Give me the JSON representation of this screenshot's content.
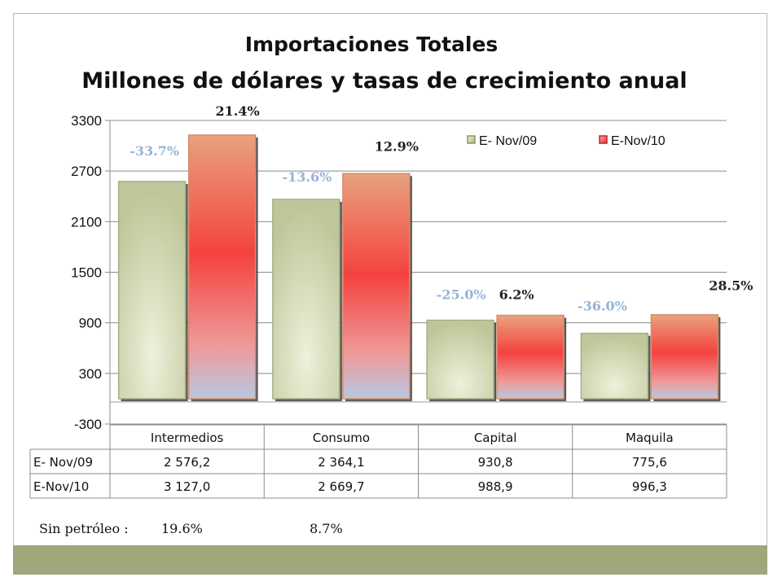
{
  "title": "Importaciones Totales",
  "subtitle": "Millones de dólares y tasas de crecimiento anual",
  "chart_data": {
    "type": "bar",
    "categories": [
      "Intermedios",
      "Consumo",
      "Capital",
      "Maquila"
    ],
    "series": [
      {
        "name": "E- Nov/09",
        "values": [
          2576.2,
          2364.1,
          930.8,
          775.6
        ],
        "table_values": [
          "2 576,2",
          "2 364,1",
          "930,8",
          "775,6"
        ],
        "growth": [
          "-33.7%",
          "-13.6%",
          "-25.0%",
          "-36.0%"
        ],
        "color": "#c9cfa6"
      },
      {
        "name": "E-Nov/10",
        "values": [
          3127.0,
          2669.7,
          988.9,
          996.3
        ],
        "table_values": [
          "3 127,0",
          "2 669,7",
          "988,9",
          "996,3"
        ],
        "growth": [
          "21.4%",
          "12.9%",
          "6.2%",
          "28.5%"
        ],
        "color": "#f24a46"
      }
    ],
    "yticks": [
      -300,
      300,
      900,
      1500,
      2100,
      2700,
      3300
    ],
    "ylim": [
      -300,
      3300
    ],
    "legend_position": "top-right",
    "grid": true,
    "growth_label_colors": {
      "E- Nov/09": "#95b3d7",
      "E-Nov/10": "#222222"
    }
  },
  "footnote": {
    "label": "Sin  petróleo :",
    "values": [
      "19.6%",
      "8.7%"
    ]
  }
}
